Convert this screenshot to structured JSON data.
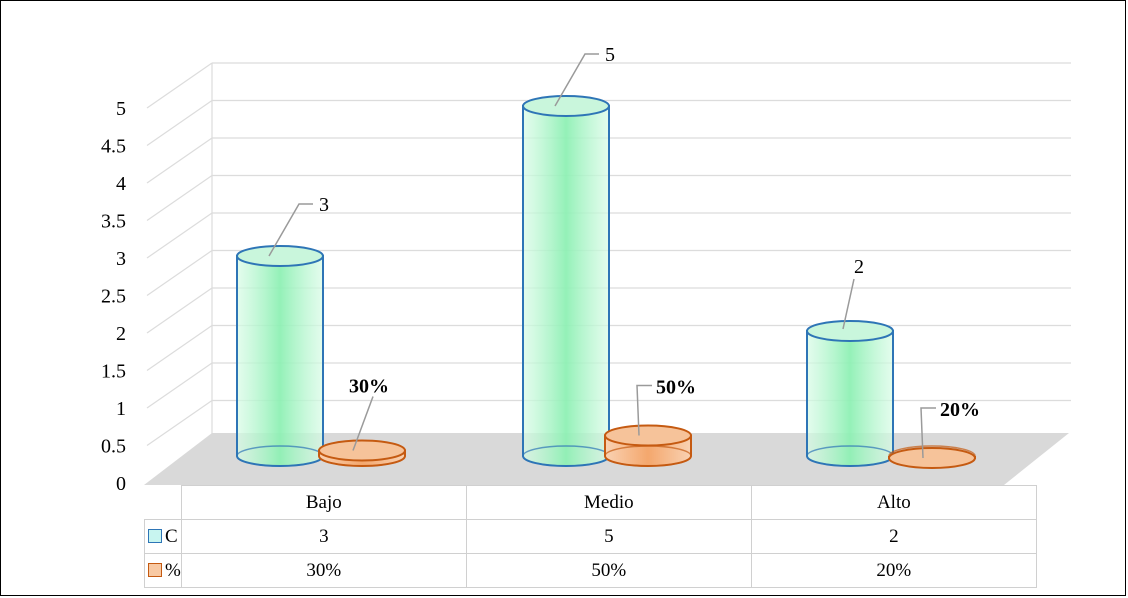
{
  "chart_data": {
    "type": "bar",
    "subtype": "3d-cylinder",
    "categories": [
      "Bajo",
      "Medio",
      "Alto"
    ],
    "y_ticks": [
      "0",
      "0.5",
      "1",
      "1.5",
      "2",
      "2.5",
      "3",
      "3.5",
      "4",
      "4.5",
      "5"
    ],
    "ylim": [
      0,
      5
    ],
    "grid": true,
    "series": [
      {
        "name": "C",
        "values": [
          3,
          5,
          2
        ],
        "data_labels": [
          "3",
          "5",
          "2"
        ],
        "table_values": [
          "3",
          "5",
          "2"
        ],
        "color": "#2e75b6",
        "fill": "#8ef0b4"
      },
      {
        "name": "%",
        "values": [
          0.3,
          0.5,
          0.2
        ],
        "data_labels": [
          "30%",
          "50%",
          "20%"
        ],
        "table_values": [
          "30%",
          "50%",
          "20%"
        ],
        "color": "#c55a11",
        "fill": "#f4b183"
      }
    ],
    "legend": "data-table",
    "data_table": true
  }
}
